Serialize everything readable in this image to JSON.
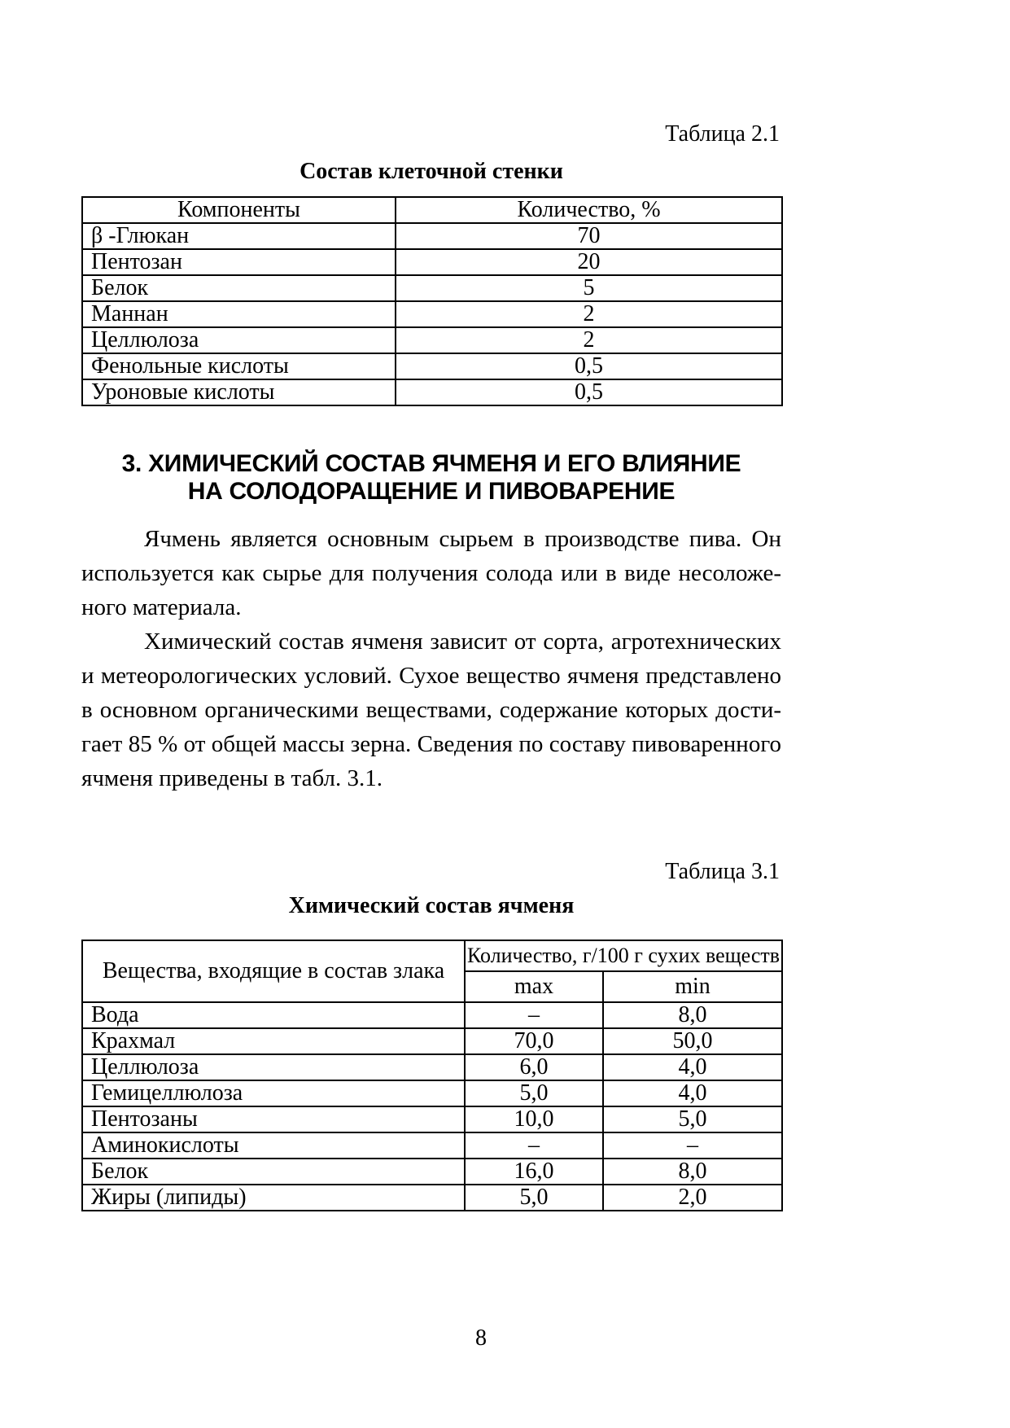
{
  "colors": {
    "text": "#000000",
    "background": "#ffffff"
  },
  "page": {
    "number": "8"
  },
  "table21": {
    "caption": "Таблица 2.1",
    "title": "Состав клеточной стенки",
    "headers": [
      "Компоненты",
      "Количество, %"
    ],
    "rows": [
      [
        "β -Глюкан",
        "70"
      ],
      [
        "Пентозан",
        "20"
      ],
      [
        "Белок",
        "5"
      ],
      [
        "Маннан",
        "2"
      ],
      [
        "Целлюлоза",
        "2"
      ],
      [
        "Фенольные кислоты",
        "0,5"
      ],
      [
        "Уроновые кислоты",
        "0,5"
      ]
    ]
  },
  "section": {
    "heading_line1": "3. ХИМИЧЕСКИЙ СОСТАВ ЯЧМЕНЯ И ЕГО ВЛИЯНИЕ",
    "heading_line2": "НА СОЛОДОРАЩЕНИЕ И ПИВОВАРЕНИЕ",
    "paragraph1_lines": [
      "Ячмень является основным сырьем в производстве пива. Он",
      "используется как сырье для получения солода или в виде несоложе-",
      "ного материала."
    ],
    "paragraph2_lines": [
      "Химический состав ячменя зависит от сорта, агротехнических",
      "и метеорологических условий. Сухое вещество ячменя представлено",
      "в основном органическими веществами, содержание которых дости-",
      "гает 85 % от общей массы зерна. Сведения по составу пивоваренного",
      "ячменя приведены в табл. 3.1."
    ]
  },
  "table31": {
    "caption": "Таблица 3.1",
    "title": "Химический состав ячменя",
    "col1_header": "Вещества, входящие в состав злака",
    "col2_header": "Количество, г/100 г сухих веществ",
    "sub_headers": [
      "max",
      "min"
    ],
    "rows": [
      [
        "Вода",
        "–",
        "8,0"
      ],
      [
        "Крахмал",
        "70,0",
        "50,0"
      ],
      [
        "Целлюлоза",
        "6,0",
        "4,0"
      ],
      [
        "Гемицеллюлоза",
        "5,0",
        "4,0"
      ],
      [
        "Пентозаны",
        "10,0",
        "5,0"
      ],
      [
        "Аминокислоты",
        "–",
        "–"
      ],
      [
        "Белок",
        "16,0",
        "8,0"
      ],
      [
        "Жиры (липиды)",
        "5,0",
        "2,0"
      ]
    ]
  }
}
